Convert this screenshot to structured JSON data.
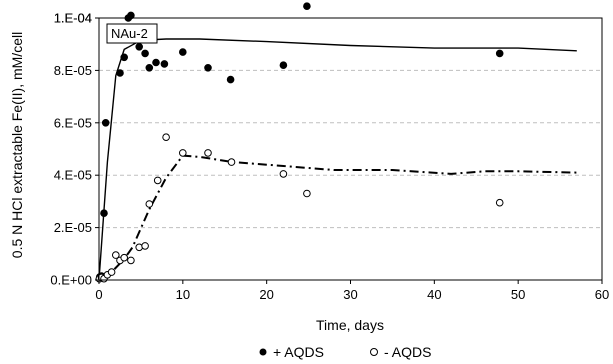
{
  "chart_data": {
    "type": "scatter",
    "annotation": "NAu-2",
    "xlabel": "Time, days",
    "ylabel": "0.5 N HCl extractable Fe(II), mM/cell",
    "xlim": [
      0,
      60
    ],
    "ylim": [
      0,
      0.0001
    ],
    "x_ticks": [
      "0",
      "10",
      "20",
      "30",
      "40",
      "50",
      "60"
    ],
    "y_ticks": [
      "0.E+00",
      "2.E-05",
      "4.E-05",
      "6.E-05",
      "8.E-05",
      "1.E-04"
    ],
    "y_top_tick": "1.E-04",
    "grid": "horizontal dashed",
    "legend_position": "bottom",
    "series": [
      {
        "name": "+ AQDS",
        "marker": "filled-circle",
        "points": [
          {
            "x": 0.05,
            "y": 5e-07
          },
          {
            "x": 0.1,
            "y": 1.2e-06
          },
          {
            "x": 0.3,
            "y": 1.5e-06
          },
          {
            "x": 0.6,
            "y": 2.55e-05
          },
          {
            "x": 0.8,
            "y": 6e-05
          },
          {
            "x": 1.5,
            "y": 9.5e-05
          },
          {
            "x": 2.0,
            "y": 9.55e-05
          },
          {
            "x": 2.5,
            "y": 7.9e-05
          },
          {
            "x": 3.0,
            "y": 8.5e-05
          },
          {
            "x": 3.5,
            "y": 0.0001
          },
          {
            "x": 3.8,
            "y": 0.000101
          },
          {
            "x": 4.8,
            "y": 8.9e-05
          },
          {
            "x": 5.5,
            "y": 8.65e-05
          },
          {
            "x": 6.0,
            "y": 8.1e-05
          },
          {
            "x": 6.8,
            "y": 8.3e-05
          },
          {
            "x": 7.8,
            "y": 8.25e-05
          },
          {
            "x": 10.0,
            "y": 8.7e-05
          },
          {
            "x": 13.0,
            "y": 8.1e-05
          },
          {
            "x": 15.7,
            "y": 7.65e-05
          },
          {
            "x": 22.0,
            "y": 8.2e-05
          },
          {
            "x": 24.8,
            "y": 0.0001045
          },
          {
            "x": 47.8,
            "y": 8.65e-05
          }
        ],
        "fit_line": {
          "style": "solid",
          "points": [
            [
              0,
              0
            ],
            [
              1,
              4.5e-05
            ],
            [
              2,
              7.8e-05
            ],
            [
              3,
              8.8e-05
            ],
            [
              5,
              9.15e-05
            ],
            [
              8,
              9.2e-05
            ],
            [
              12,
              9.2e-05
            ],
            [
              20,
              9.1e-05
            ],
            [
              30,
              8.95e-05
            ],
            [
              40,
              8.85e-05
            ],
            [
              50,
              8.85e-05
            ],
            [
              57,
              8.75e-05
            ]
          ]
        }
      },
      {
        "name": "- AQDS",
        "marker": "open-circle",
        "points": [
          {
            "x": 0.05,
            "y": 5e-07
          },
          {
            "x": 0.3,
            "y": 1e-06
          },
          {
            "x": 0.6,
            "y": 5e-07
          },
          {
            "x": 1.0,
            "y": 2e-06
          },
          {
            "x": 1.5,
            "y": 3e-06
          },
          {
            "x": 2.0,
            "y": 9.5e-06
          },
          {
            "x": 2.5,
            "y": 7.5e-06
          },
          {
            "x": 3.0,
            "y": 8.5e-06
          },
          {
            "x": 3.8,
            "y": 7.5e-06
          },
          {
            "x": 4.8,
            "y": 1.25e-05
          },
          {
            "x": 5.5,
            "y": 1.3e-05
          },
          {
            "x": 6.0,
            "y": 2.9e-05
          },
          {
            "x": 7.0,
            "y": 3.8e-05
          },
          {
            "x": 8.0,
            "y": 5.45e-05
          },
          {
            "x": 10.0,
            "y": 4.85e-05
          },
          {
            "x": 13.0,
            "y": 4.85e-05
          },
          {
            "x": 15.8,
            "y": 4.5e-05
          },
          {
            "x": 22.0,
            "y": 4.05e-05
          },
          {
            "x": 24.8,
            "y": 3.3e-05
          },
          {
            "x": 47.8,
            "y": 2.95e-05
          }
        ],
        "fit_line": {
          "style": "dash-dot",
          "points": [
            [
              0,
              0
            ],
            [
              1.5,
              3e-06
            ],
            [
              3,
              8e-06
            ],
            [
              4,
              1.25e-05
            ],
            [
              6,
              2.7e-05
            ],
            [
              8,
              3.9e-05
            ],
            [
              10,
              4.75e-05
            ],
            [
              12,
              4.7e-05
            ],
            [
              16,
              4.5e-05
            ],
            [
              22,
              4.35e-05
            ],
            [
              28,
              4.2e-05
            ],
            [
              35,
              4.2e-05
            ],
            [
              42,
              4.05e-05
            ],
            [
              46,
              4.15e-05
            ],
            [
              50,
              4.15e-05
            ],
            [
              57,
              4.1e-05
            ]
          ]
        }
      }
    ]
  }
}
